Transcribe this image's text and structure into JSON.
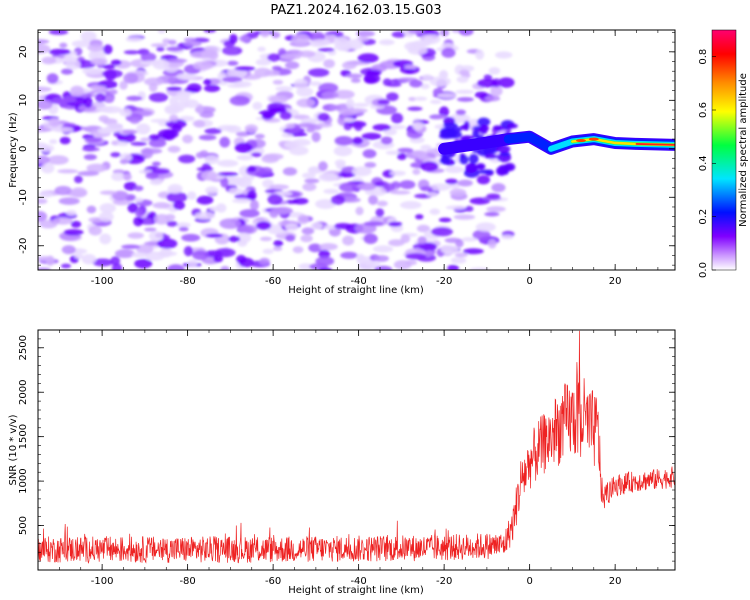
{
  "title": "PAZ1.2024.162.03.15.G03",
  "chart_data": [
    {
      "type": "heatmap",
      "name": "spectrogram",
      "xlabel": "Height of straight line (km)",
      "ylabel": "Frequency (Hz)",
      "xlim": [
        -115,
        34
      ],
      "ylim": [
        -25,
        24.5
      ],
      "xticks": [
        -100,
        -80,
        -60,
        -40,
        -20,
        0,
        20
      ],
      "yticks": [
        -20,
        -10,
        0,
        10,
        20
      ],
      "colorbar": {
        "label": "Normalized spectral amplitude",
        "range": [
          0.0,
          0.9
        ],
        "ticks": [
          0.0,
          0.2,
          0.4,
          0.6,
          0.8
        ],
        "colormap": [
          "#ffffff",
          "#cc99ff",
          "#7a00ff",
          "#0000ff",
          "#00ffff",
          "#00ff00",
          "#ffff00",
          "#ff8000",
          "#ff0000",
          "#ff0066"
        ]
      },
      "signal_ridge": {
        "description": "narrow high-amplitude band near 1–3 Hz from about -5 km to 34 km",
        "points": [
          [
            -20,
            0
          ],
          [
            -12,
            1
          ],
          [
            -5,
            2
          ],
          [
            0,
            2.5
          ],
          [
            5,
            0
          ],
          [
            10,
            1.5
          ],
          [
            15,
            2
          ],
          [
            20,
            1.2
          ],
          [
            25,
            1.0
          ],
          [
            34,
            0.8
          ]
        ]
      },
      "noise_region": {
        "x_range": [
          -115,
          -5
        ],
        "amplitude_range": [
          0.0,
          0.3
        ]
      }
    },
    {
      "type": "line",
      "name": "snr",
      "xlabel": "Height of straight line (km)",
      "ylabel": "SNR (10 * v/v)",
      "xlim": [
        -115,
        34
      ],
      "ylim": [
        0,
        2700
      ],
      "xticks": [
        -100,
        -80,
        -60,
        -40,
        -20,
        0,
        20
      ],
      "yticks": [
        500,
        1000,
        1500,
        2000,
        2500
      ],
      "color": "#ee2222",
      "envelope": {
        "x": [
          -115,
          -60,
          -20,
          -6,
          -4,
          -2,
          0,
          2,
          4,
          6,
          8,
          10,
          12,
          14,
          16,
          17,
          20,
          25,
          30,
          34
        ],
        "mean": [
          230,
          230,
          250,
          280,
          500,
          1000,
          1200,
          1350,
          1450,
          1550,
          1650,
          1700,
          1750,
          1600,
          1550,
          800,
          950,
          1000,
          1020,
          1050
        ],
        "spread": [
          150,
          150,
          150,
          150,
          200,
          300,
          300,
          350,
          350,
          400,
          450,
          450,
          500,
          450,
          450,
          150,
          120,
          120,
          120,
          120
        ]
      }
    }
  ]
}
